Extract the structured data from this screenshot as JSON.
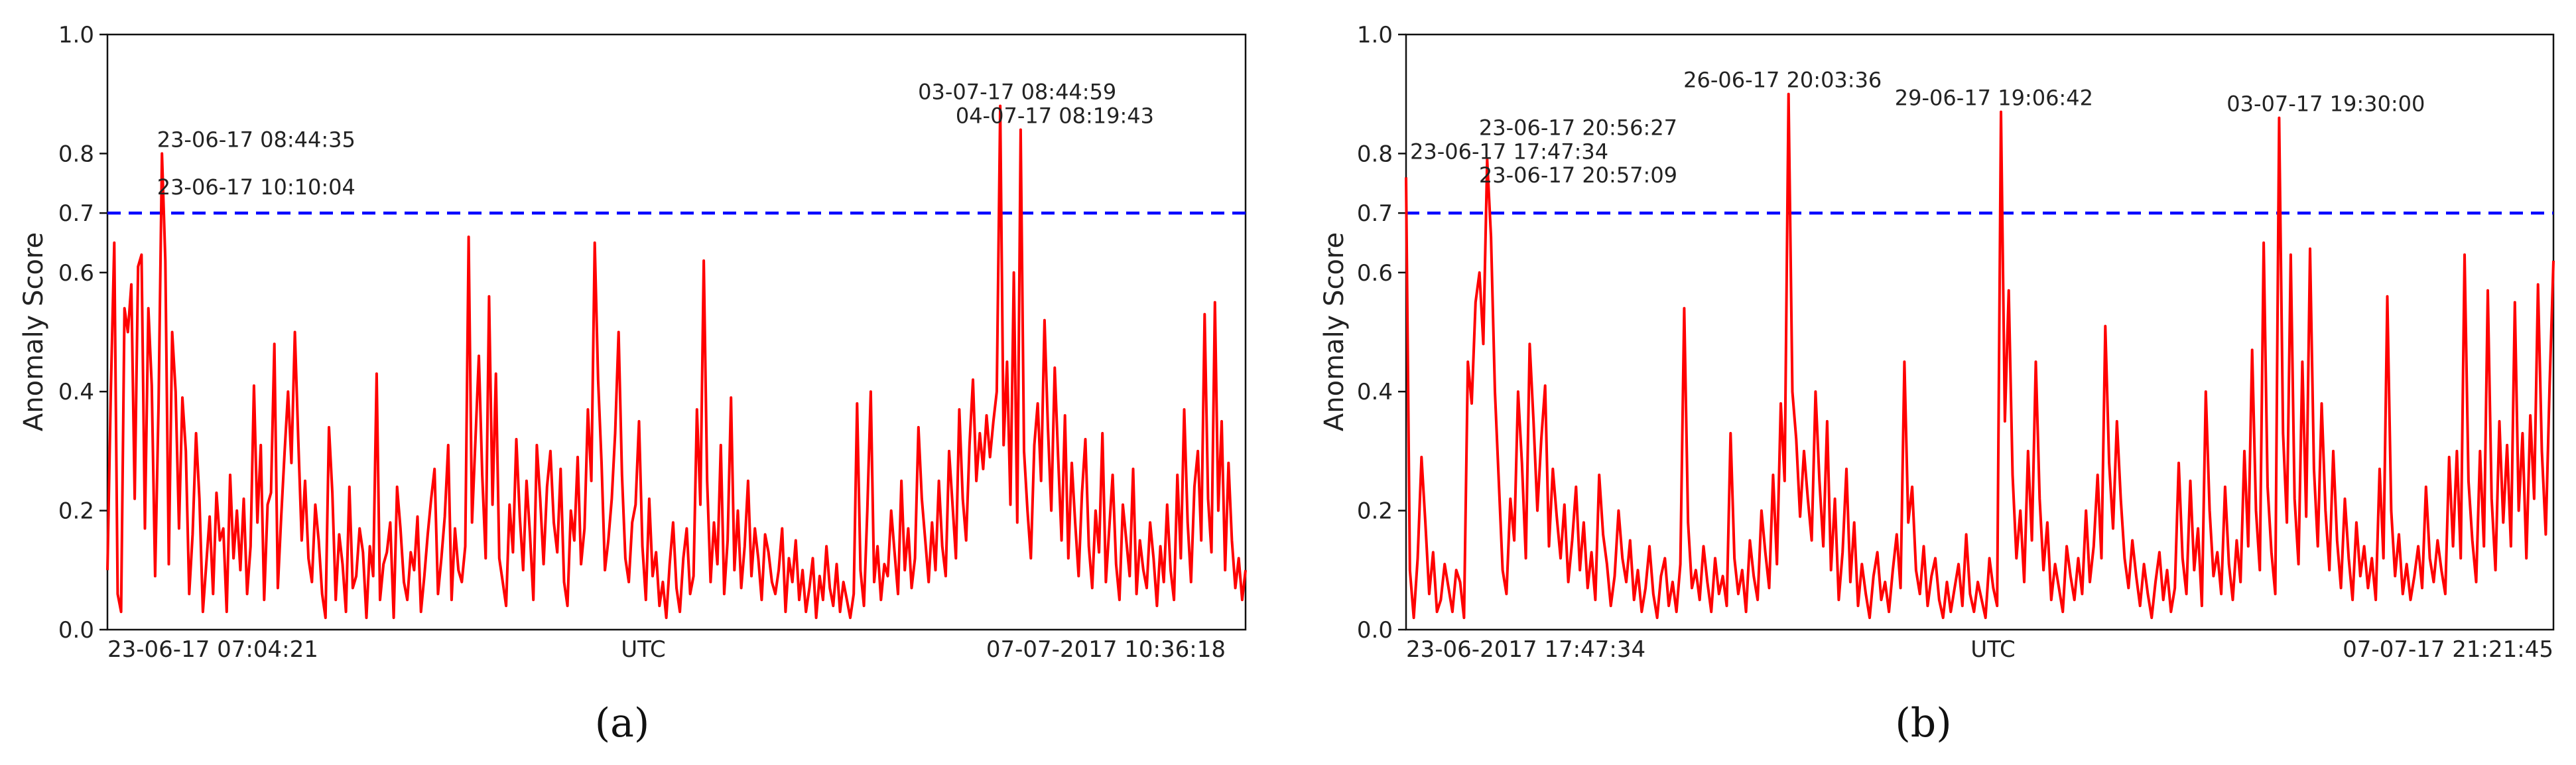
{
  "chart_data": [
    {
      "panel_label": "(a)",
      "type": "line",
      "ylabel": "Anomaly Score",
      "center_label": "UTC",
      "x_start_label": "23-06-17 07:04:21",
      "x_end_label": "07-07-2017 10:36:18",
      "ylim": [
        0,
        1.0
      ],
      "yticks": [
        "0.0",
        "0.2",
        "0.4",
        "0.6",
        "0.7",
        "0.8",
        "1.0"
      ],
      "threshold": 0.7,
      "threshold_color": "#0000ff",
      "series_color": "#ff0000",
      "annotations": [
        {
          "text": "23-06-17 08:44:35",
          "x": 40,
          "y": 0.8
        },
        {
          "text": "23-06-17 10:10:04",
          "x": 40,
          "y": 0.72
        },
        {
          "text": "03-07-17 08:44:59",
          "x": 708,
          "y": 0.88
        },
        {
          "text": "04-07-17 08:19:43",
          "x": 741,
          "y": 0.84
        }
      ],
      "x_count": 1000,
      "y": [
        0.1,
        0.4,
        0.65,
        0.06,
        0.03,
        0.54,
        0.5,
        0.58,
        0.22,
        0.61,
        0.63,
        0.17,
        0.54,
        0.41,
        0.09,
        0.38,
        0.8,
        0.62,
        0.11,
        0.5,
        0.4,
        0.17,
        0.39,
        0.3,
        0.06,
        0.16,
        0.33,
        0.22,
        0.03,
        0.11,
        0.19,
        0.06,
        0.23,
        0.15,
        0.17,
        0.03,
        0.26,
        0.12,
        0.2,
        0.1,
        0.22,
        0.06,
        0.14,
        0.41,
        0.18,
        0.31,
        0.05,
        0.21,
        0.23,
        0.48,
        0.07,
        0.19,
        0.3,
        0.4,
        0.28,
        0.5,
        0.32,
        0.15,
        0.25,
        0.12,
        0.08,
        0.21,
        0.15,
        0.06,
        0.02,
        0.34,
        0.23,
        0.05,
        0.16,
        0.11,
        0.03,
        0.24,
        0.07,
        0.09,
        0.17,
        0.13,
        0.02,
        0.14,
        0.09,
        0.43,
        0.05,
        0.11,
        0.13,
        0.18,
        0.02,
        0.24,
        0.17,
        0.08,
        0.05,
        0.13,
        0.1,
        0.19,
        0.03,
        0.09,
        0.16,
        0.22,
        0.27,
        0.06,
        0.12,
        0.19,
        0.31,
        0.05,
        0.17,
        0.1,
        0.08,
        0.14,
        0.66,
        0.18,
        0.32,
        0.46,
        0.26,
        0.12,
        0.56,
        0.21,
        0.43,
        0.12,
        0.08,
        0.04,
        0.21,
        0.13,
        0.32,
        0.19,
        0.1,
        0.25,
        0.16,
        0.05,
        0.31,
        0.22,
        0.11,
        0.24,
        0.3,
        0.18,
        0.13,
        0.27,
        0.08,
        0.04,
        0.2,
        0.15,
        0.29,
        0.11,
        0.17,
        0.37,
        0.25,
        0.65,
        0.42,
        0.28,
        0.1,
        0.15,
        0.22,
        0.33,
        0.5,
        0.26,
        0.12,
        0.08,
        0.18,
        0.21,
        0.35,
        0.14,
        0.05,
        0.22,
        0.09,
        0.13,
        0.04,
        0.08,
        0.02,
        0.11,
        0.18,
        0.07,
        0.03,
        0.12,
        0.17,
        0.06,
        0.09,
        0.37,
        0.21,
        0.62,
        0.25,
        0.08,
        0.18,
        0.11,
        0.31,
        0.06,
        0.15,
        0.39,
        0.1,
        0.2,
        0.07,
        0.14,
        0.25,
        0.09,
        0.17,
        0.12,
        0.05,
        0.16,
        0.13,
        0.08,
        0.06,
        0.1,
        0.17,
        0.03,
        0.12,
        0.08,
        0.15,
        0.05,
        0.1,
        0.03,
        0.07,
        0.12,
        0.02,
        0.09,
        0.05,
        0.14,
        0.07,
        0.04,
        0.11,
        0.03,
        0.08,
        0.05,
        0.02,
        0.06,
        0.38,
        0.1,
        0.04,
        0.2,
        0.4,
        0.08,
        0.14,
        0.05,
        0.11,
        0.09,
        0.2,
        0.13,
        0.06,
        0.25,
        0.1,
        0.17,
        0.07,
        0.12,
        0.34,
        0.22,
        0.15,
        0.08,
        0.18,
        0.1,
        0.25,
        0.14,
        0.09,
        0.3,
        0.21,
        0.12,
        0.37,
        0.22,
        0.15,
        0.31,
        0.42,
        0.25,
        0.33,
        0.27,
        0.36,
        0.29,
        0.35,
        0.4,
        0.88,
        0.31,
        0.45,
        0.21,
        0.6,
        0.18,
        0.84,
        0.3,
        0.2,
        0.12,
        0.31,
        0.38,
        0.25,
        0.52,
        0.34,
        0.2,
        0.44,
        0.29,
        0.15,
        0.36,
        0.12,
        0.28,
        0.18,
        0.09,
        0.23,
        0.32,
        0.14,
        0.07,
        0.2,
        0.13,
        0.33,
        0.08,
        0.17,
        0.26,
        0.11,
        0.05,
        0.21,
        0.15,
        0.09,
        0.27,
        0.06,
        0.15,
        0.1,
        0.07,
        0.18,
        0.12,
        0.04,
        0.14,
        0.08,
        0.21,
        0.1,
        0.05,
        0.26,
        0.12,
        0.37,
        0.18,
        0.08,
        0.24,
        0.3,
        0.15,
        0.53,
        0.22,
        0.13,
        0.55,
        0.2,
        0.35,
        0.1,
        0.28,
        0.15,
        0.07,
        0.12,
        0.05,
        0.1
      ]
    },
    {
      "panel_label": "(b)",
      "type": "line",
      "ylabel": "Anomaly Score",
      "center_label": "UTC",
      "x_start_label": "23-06-2017 17:47:34",
      "x_end_label": "07-07-17 21:21:45",
      "ylim": [
        0,
        1.0
      ],
      "yticks": [
        "0.0",
        "0.2",
        "0.4",
        "0.6",
        "0.7",
        "0.8",
        "1.0"
      ],
      "threshold": 0.7,
      "threshold_color": "#0000ff",
      "series_color": "#ff0000",
      "annotations": [
        {
          "text": "23-06-17 17:47:34",
          "x": 0,
          "y": 0.78
        },
        {
          "text": "23-06-17 20:56:27",
          "x": 60,
          "y": 0.82
        },
        {
          "text": "23-06-17 20:57:09",
          "x": 60,
          "y": 0.74
        },
        {
          "text": "26-06-17 20:03:36",
          "x": 238,
          "y": 0.9
        },
        {
          "text": "29-06-17 19:06:42",
          "x": 422,
          "y": 0.87
        },
        {
          "text": "03-07-17 19:30:00",
          "x": 711,
          "y": 0.86
        }
      ],
      "x_count": 1000,
      "y": [
        0.76,
        0.1,
        0.02,
        0.12,
        0.29,
        0.18,
        0.06,
        0.13,
        0.03,
        0.05,
        0.11,
        0.07,
        0.03,
        0.1,
        0.08,
        0.02,
        0.45,
        0.38,
        0.55,
        0.6,
        0.48,
        0.79,
        0.66,
        0.4,
        0.25,
        0.1,
        0.06,
        0.22,
        0.15,
        0.4,
        0.28,
        0.12,
        0.48,
        0.35,
        0.2,
        0.32,
        0.41,
        0.14,
        0.27,
        0.19,
        0.12,
        0.21,
        0.08,
        0.15,
        0.24,
        0.1,
        0.18,
        0.07,
        0.13,
        0.05,
        0.26,
        0.16,
        0.11,
        0.04,
        0.09,
        0.2,
        0.12,
        0.08,
        0.15,
        0.05,
        0.1,
        0.03,
        0.07,
        0.14,
        0.06,
        0.02,
        0.09,
        0.12,
        0.04,
        0.08,
        0.03,
        0.11,
        0.54,
        0.18,
        0.07,
        0.1,
        0.05,
        0.14,
        0.08,
        0.03,
        0.12,
        0.06,
        0.09,
        0.04,
        0.33,
        0.12,
        0.06,
        0.1,
        0.03,
        0.15,
        0.09,
        0.05,
        0.2,
        0.13,
        0.07,
        0.26,
        0.11,
        0.38,
        0.25,
        0.9,
        0.4,
        0.32,
        0.19,
        0.3,
        0.22,
        0.15,
        0.4,
        0.25,
        0.14,
        0.35,
        0.1,
        0.22,
        0.05,
        0.13,
        0.27,
        0.08,
        0.18,
        0.04,
        0.11,
        0.06,
        0.02,
        0.09,
        0.13,
        0.05,
        0.08,
        0.03,
        0.1,
        0.16,
        0.07,
        0.45,
        0.18,
        0.24,
        0.1,
        0.06,
        0.14,
        0.04,
        0.09,
        0.12,
        0.05,
        0.02,
        0.08,
        0.03,
        0.07,
        0.11,
        0.04,
        0.16,
        0.06,
        0.03,
        0.08,
        0.05,
        0.02,
        0.12,
        0.07,
        0.04,
        0.87,
        0.35,
        0.57,
        0.26,
        0.12,
        0.2,
        0.08,
        0.3,
        0.15,
        0.45,
        0.22,
        0.1,
        0.18,
        0.05,
        0.11,
        0.07,
        0.03,
        0.14,
        0.09,
        0.05,
        0.12,
        0.06,
        0.2,
        0.08,
        0.14,
        0.26,
        0.12,
        0.51,
        0.28,
        0.17,
        0.35,
        0.22,
        0.12,
        0.07,
        0.15,
        0.09,
        0.04,
        0.11,
        0.06,
        0.02,
        0.08,
        0.13,
        0.05,
        0.1,
        0.03,
        0.07,
        0.28,
        0.12,
        0.06,
        0.25,
        0.1,
        0.17,
        0.04,
        0.4,
        0.2,
        0.09,
        0.13,
        0.06,
        0.24,
        0.11,
        0.05,
        0.15,
        0.08,
        0.3,
        0.14,
        0.47,
        0.2,
        0.1,
        0.65,
        0.24,
        0.13,
        0.06,
        0.86,
        0.33,
        0.18,
        0.63,
        0.22,
        0.11,
        0.45,
        0.19,
        0.64,
        0.27,
        0.14,
        0.38,
        0.2,
        0.1,
        0.3,
        0.15,
        0.07,
        0.22,
        0.12,
        0.05,
        0.18,
        0.09,
        0.14,
        0.07,
        0.12,
        0.05,
        0.27,
        0.12,
        0.56,
        0.2,
        0.09,
        0.16,
        0.06,
        0.11,
        0.05,
        0.09,
        0.14,
        0.07,
        0.24,
        0.12,
        0.08,
        0.15,
        0.1,
        0.06,
        0.29,
        0.14,
        0.3,
        0.12,
        0.63,
        0.25,
        0.15,
        0.08,
        0.3,
        0.14,
        0.57,
        0.22,
        0.1,
        0.35,
        0.18,
        0.31,
        0.14,
        0.55,
        0.2,
        0.33,
        0.12,
        0.36,
        0.22,
        0.58,
        0.3,
        0.16,
        0.41,
        0.62
      ]
    }
  ]
}
